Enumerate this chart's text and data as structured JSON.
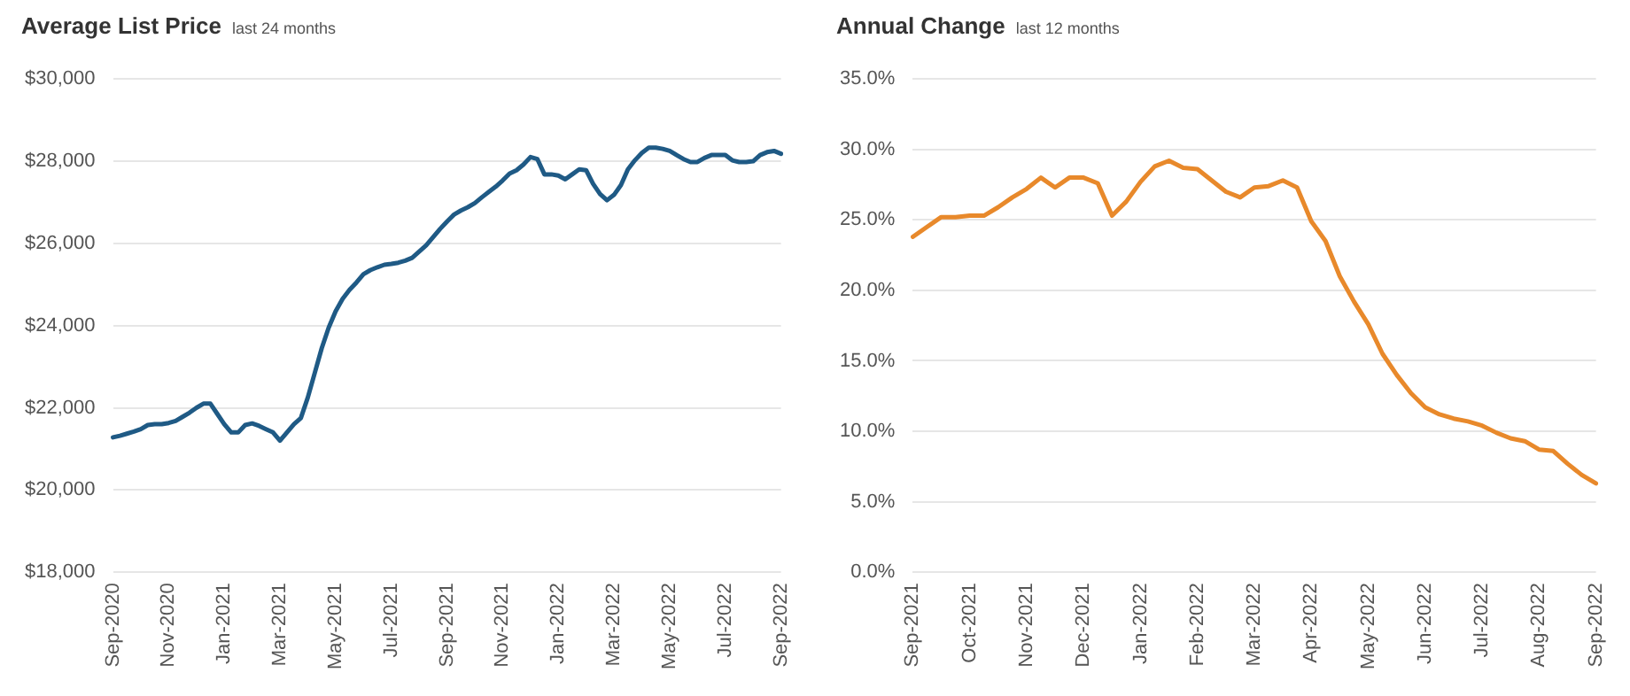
{
  "chart_data": [
    {
      "type": "line",
      "title": "Average List Price",
      "subtitle": "last 24 months",
      "categories": [
        "Sep-2020",
        null,
        null,
        null,
        null,
        null,
        null,
        null,
        "Nov-2020",
        null,
        null,
        null,
        null,
        null,
        null,
        null,
        "Jan-2021",
        null,
        null,
        null,
        null,
        null,
        null,
        null,
        "Mar-2021",
        null,
        null,
        null,
        null,
        null,
        null,
        null,
        "May-2021",
        null,
        null,
        null,
        null,
        null,
        null,
        null,
        "Jul-2021",
        null,
        null,
        null,
        null,
        null,
        null,
        null,
        "Sep-2021",
        null,
        null,
        null,
        null,
        null,
        null,
        null,
        "Nov-2021",
        null,
        null,
        null,
        null,
        null,
        null,
        null,
        "Jan-2022",
        null,
        null,
        null,
        null,
        null,
        null,
        null,
        "Mar-2022",
        null,
        null,
        null,
        null,
        null,
        null,
        null,
        "May-2022",
        null,
        null,
        null,
        null,
        null,
        null,
        null,
        "Jul-2022",
        null,
        null,
        null,
        null,
        null,
        null,
        null,
        "Sep-2022"
      ],
      "series": [
        {
          "color": "#1f5a85",
          "values": [
            21280,
            21320,
            21370,
            21420,
            21480,
            21580,
            21600,
            21600,
            21630,
            21680,
            21780,
            21880,
            22000,
            22100,
            22100,
            21850,
            21600,
            21400,
            21400,
            21580,
            21620,
            21560,
            21480,
            21400,
            21200,
            21400,
            21600,
            21750,
            22250,
            22850,
            23450,
            23950,
            24350,
            24650,
            24870,
            25050,
            25250,
            25350,
            25420,
            25480,
            25500,
            25530,
            25580,
            25650,
            25800,
            25950,
            26150,
            26350,
            26530,
            26700,
            26800,
            26880,
            26980,
            27120,
            27250,
            27380,
            27530,
            27700,
            27780,
            27920,
            28100,
            28050,
            27680,
            27680,
            27650,
            27560,
            27680,
            27800,
            27780,
            27450,
            27200,
            27050,
            27180,
            27420,
            27800,
            28020,
            28200,
            28330,
            28330,
            28300,
            28250,
            28150,
            28050,
            27980,
            27980,
            28080,
            28150,
            28150,
            28150,
            28020,
            27980,
            27980,
            28000,
            28150,
            28220,
            28250,
            28180
          ]
        }
      ],
      "ylim": [
        18000,
        30000
      ],
      "yticks": [
        {
          "value": 18000,
          "label": "$18,000"
        },
        {
          "value": 20000,
          "label": "$20,000"
        },
        {
          "value": 22000,
          "label": "$22,000"
        },
        {
          "value": 24000,
          "label": "$24,000"
        },
        {
          "value": 26000,
          "label": "$26,000"
        },
        {
          "value": 28000,
          "label": "$28,000"
        },
        {
          "value": 30000,
          "label": "$30,000"
        }
      ],
      "grid": "y",
      "legend": false,
      "marker": "none",
      "line_style": "solid"
    },
    {
      "type": "line",
      "title": "Annual Change",
      "subtitle": "last 12 months",
      "categories": [
        "Sep-2021",
        null,
        null,
        null,
        "Oct-2021",
        null,
        null,
        null,
        "Nov-2021",
        null,
        null,
        null,
        "Dec-2021",
        null,
        null,
        null,
        "Jan-2022",
        null,
        null,
        null,
        "Feb-2022",
        null,
        null,
        null,
        "Mar-2022",
        null,
        null,
        null,
        "Apr-2022",
        null,
        null,
        null,
        "May-2022",
        null,
        null,
        null,
        "Jun-2022",
        null,
        null,
        null,
        "Jul-2022",
        null,
        null,
        null,
        "Aug-2022",
        null,
        null,
        null,
        "Sep-2022"
      ],
      "series": [
        {
          "color": "#e8892b",
          "values": [
            23.8,
            24.5,
            25.2,
            25.2,
            25.3,
            25.3,
            25.9,
            26.6,
            27.2,
            28.0,
            27.3,
            28.0,
            28.0,
            27.6,
            25.3,
            26.3,
            27.7,
            28.8,
            29.2,
            28.7,
            28.6,
            27.8,
            27.0,
            26.6,
            27.3,
            27.4,
            27.8,
            27.3,
            24.9,
            23.5,
            21.0,
            19.2,
            17.6,
            15.5,
            14.0,
            12.7,
            11.7,
            11.2,
            10.9,
            10.7,
            10.4,
            9.9,
            9.5,
            9.3,
            8.7,
            8.6,
            7.7,
            6.9,
            6.3
          ]
        }
      ],
      "ylim": [
        0,
        35
      ],
      "yticks": [
        {
          "value": 0,
          "label": "0.0%"
        },
        {
          "value": 5,
          "label": "5.0%"
        },
        {
          "value": 10,
          "label": "10.0%"
        },
        {
          "value": 15,
          "label": "15.0%"
        },
        {
          "value": 20,
          "label": "20.0%"
        },
        {
          "value": 25,
          "label": "25.0%"
        },
        {
          "value": 30,
          "label": "30.0%"
        },
        {
          "value": 35,
          "label": "35.0%"
        }
      ],
      "grid": "y",
      "legend": false,
      "marker": "none",
      "line_style": "solid"
    }
  ]
}
